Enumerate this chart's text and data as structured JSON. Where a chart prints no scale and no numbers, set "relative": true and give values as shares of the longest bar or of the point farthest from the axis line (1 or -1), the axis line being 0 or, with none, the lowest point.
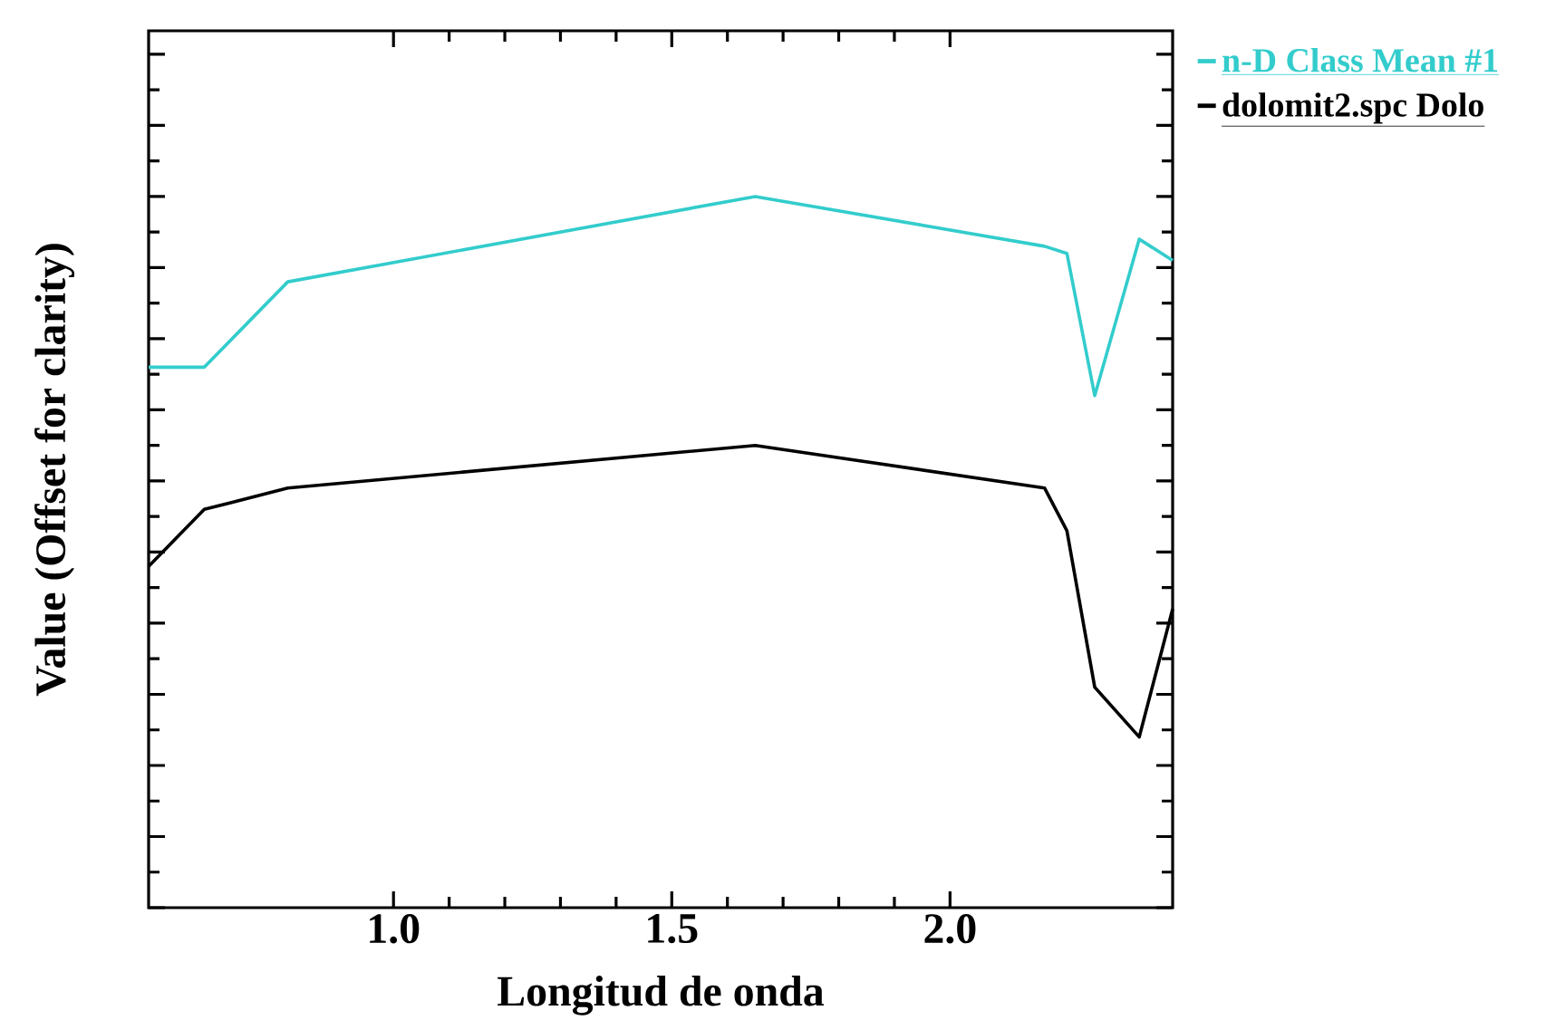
{
  "chart_data": {
    "type": "line",
    "xlabel": "Longitud de onda",
    "ylabel": "Value (Offset for clarity)",
    "x": [
      0.56,
      0.66,
      0.81,
      1.65,
      2.17,
      2.21,
      2.26,
      2.34,
      2.4
    ],
    "series": [
      {
        "name": "n-D Class Mean #1",
        "color": "#33cccc",
        "values": [
          0.76,
          0.76,
          0.88,
          1.0,
          0.93,
          0.92,
          0.72,
          0.94,
          0.91
        ]
      },
      {
        "name": "dolomit2.spc Dolo",
        "color": "#000000",
        "values": [
          0.48,
          0.56,
          0.59,
          0.65,
          0.59,
          0.53,
          0.31,
          0.24,
          0.42
        ]
      }
    ],
    "relative": true,
    "xlim": [
      0.56,
      2.4
    ],
    "xticks": [
      {
        "value": 1,
        "label": "1.0"
      },
      {
        "value": 1.5,
        "label": "1.5"
      },
      {
        "value": 2,
        "label": "2.0"
      }
    ],
    "legend": "right"
  }
}
